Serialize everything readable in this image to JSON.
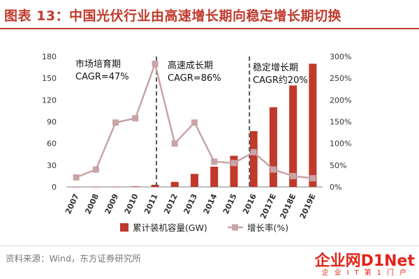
{
  "title": "图表 13：中国光伏行业由高速增长期向稳定增长期切换",
  "source": "资料来源：Wind，东方证券研究所",
  "logo": {
    "main": "企业网D1Net",
    "sub": "企业IT第1门户"
  },
  "colors": {
    "title": "#c0392b",
    "bar": "#c0392b",
    "line": "#c9a3a6",
    "marker": "#c9a3a6",
    "divider": "#555555",
    "axis": "#808080"
  },
  "chart_data": {
    "type": "bar",
    "categories": [
      "2007",
      "2008",
      "2009",
      "2010",
      "2011",
      "2012",
      "2013",
      "2014",
      "2015",
      "2016",
      "2017E",
      "2018E",
      "2019E"
    ],
    "series": [
      {
        "name": "累计装机容量(GW)",
        "kind": "bar",
        "axis": "left",
        "values": [
          0.1,
          0.14,
          0.3,
          0.8,
          3,
          7,
          18,
          28,
          43,
          77,
          110,
          140,
          170
        ]
      },
      {
        "name": "增长率(%)",
        "kind": "line",
        "axis": "right",
        "values": [
          22,
          40,
          148,
          158,
          283,
          100,
          148,
          58,
          55,
          80,
          40,
          25,
          20
        ]
      }
    ],
    "y_left": {
      "range": [
        0,
        180
      ],
      "ticks": [
        "0",
        "30",
        "60",
        "90",
        "120",
        "150",
        "180"
      ]
    },
    "y_right": {
      "range": [
        0,
        300
      ],
      "ticks": [
        "0%",
        "50%",
        "100%",
        "150%",
        "200%",
        "250%",
        "300%"
      ]
    },
    "grid": false,
    "legend_position": "bottom",
    "annotations": [
      {
        "lines": [
          "市场培育期",
          "CAGR=47%"
        ]
      },
      {
        "lines": [
          "高速成长期",
          "CAGR=86%"
        ]
      },
      {
        "lines": [
          "稳定增长期",
          "CAGR约20%"
        ]
      }
    ],
    "dividers_after": [
      "2011",
      "2016"
    ]
  }
}
